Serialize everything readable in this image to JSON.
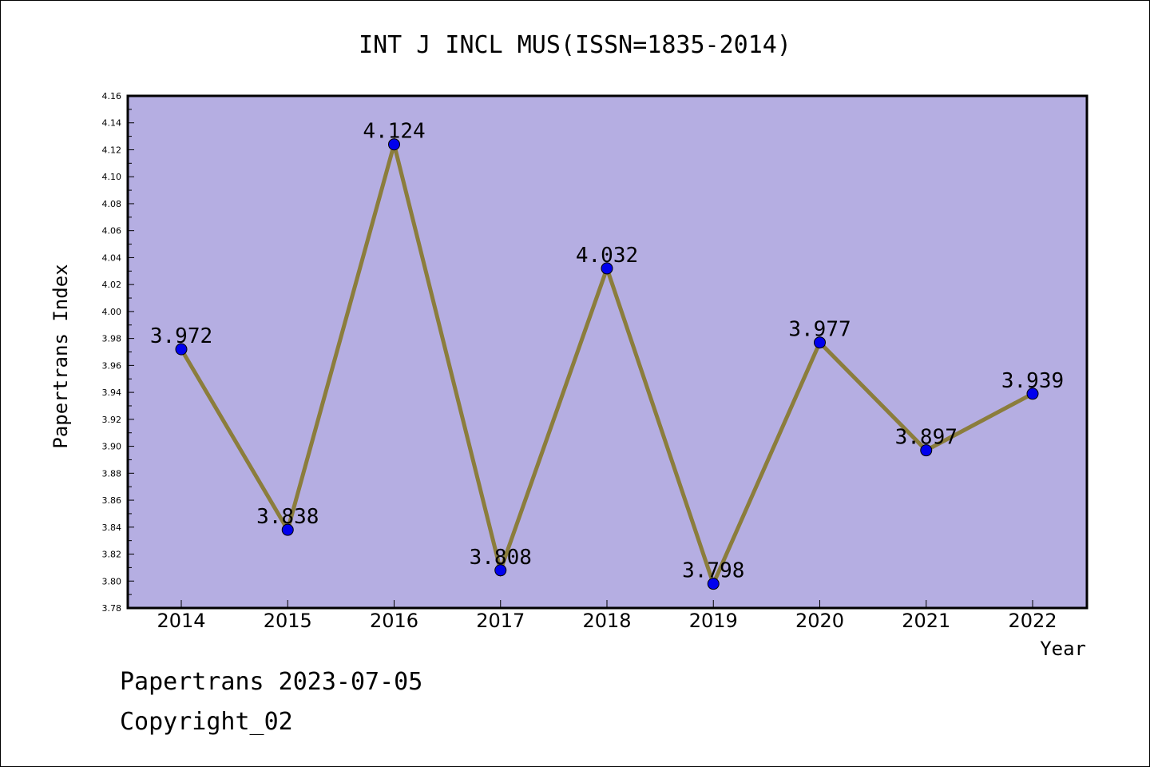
{
  "page": {
    "footer_line1": "Papertrans 2023-07-05",
    "footer_line2": "Copyright_02"
  },
  "chart_data": {
    "type": "line",
    "title": "INT J INCL MUS(ISSN=1835-2014)",
    "xlabel": "Year",
    "ylabel": "Papertrans Index",
    "categories": [
      "2014",
      "2015",
      "2016",
      "2017",
      "2018",
      "2019",
      "2020",
      "2021",
      "2022"
    ],
    "series": [
      {
        "values": [
          3.972,
          3.838,
          4.124,
          3.808,
          4.032,
          3.798,
          3.977,
          3.897,
          3.939
        ],
        "labels": [
          "3.972",
          "3.838",
          "4.124",
          "3.808",
          "4.032",
          "3.798",
          "3.977",
          "3.897",
          "3.939"
        ]
      }
    ],
    "ylim": [
      3.78,
      4.16
    ],
    "yticks": [
      "3.78",
      "3.80",
      "3.82",
      "3.84",
      "3.86",
      "3.88",
      "3.90",
      "3.92",
      "3.94",
      "3.96",
      "3.98",
      "4.00",
      "4.02",
      "4.04",
      "4.06",
      "4.08",
      "4.10",
      "4.12",
      "4.14",
      "4.16"
    ],
    "grid": false,
    "colors": {
      "plot_background": "#b5aee2",
      "line": "#8b7d3c",
      "marker": "#0000ee"
    }
  }
}
